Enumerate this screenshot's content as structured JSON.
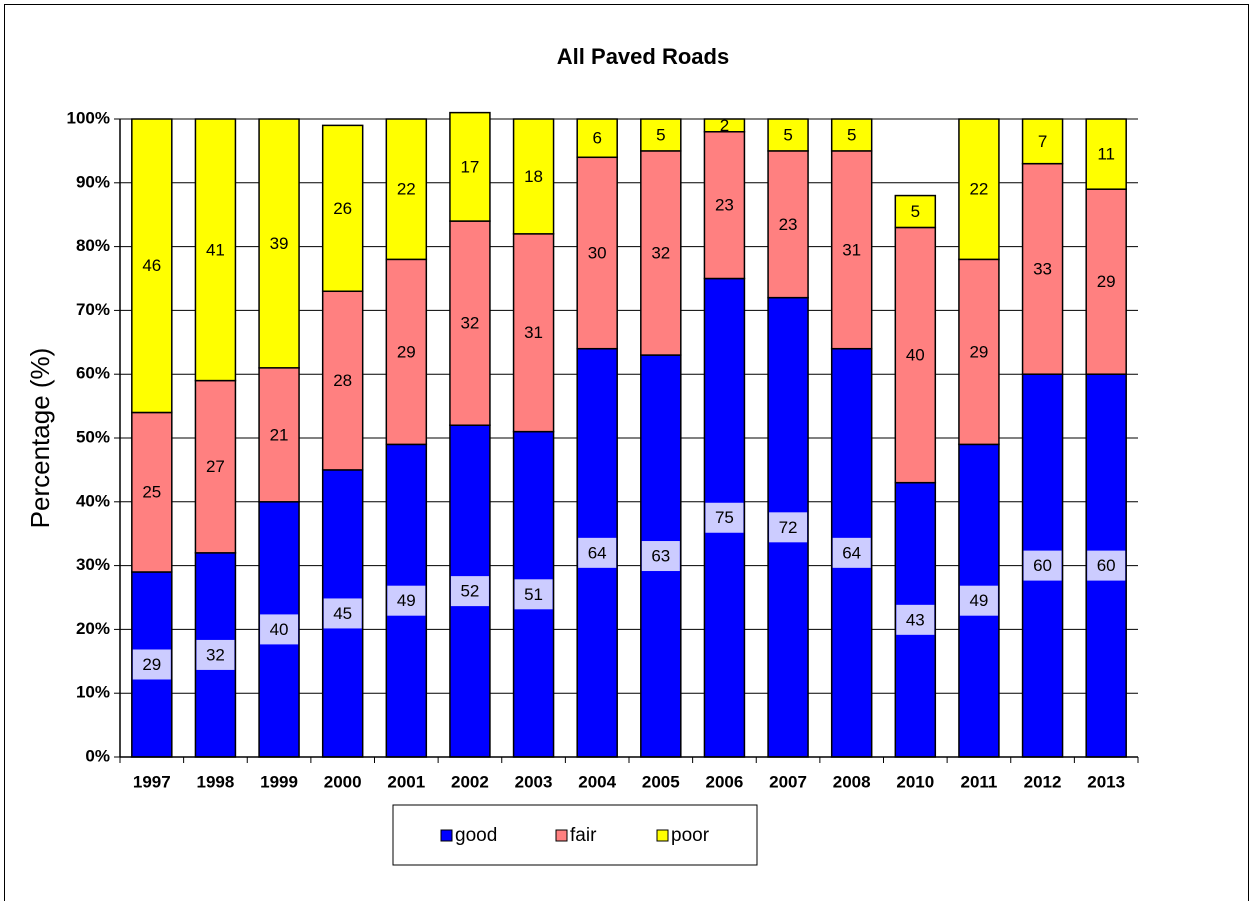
{
  "chart_data": {
    "type": "bar",
    "stacked": true,
    "title": "All Paved Roads",
    "y_label": "Percentage (%)",
    "categories": [
      "1997",
      "1998",
      "1999",
      "2000",
      "2001",
      "2002",
      "2003",
      "2004",
      "2005",
      "2006",
      "2007",
      "2008",
      "2010",
      "2011",
      "2012",
      "2013"
    ],
    "series": [
      {
        "name": "good",
        "color": "#0000ff",
        "values": [
          29,
          32,
          40,
          45,
          49,
          52,
          51,
          64,
          63,
          75,
          72,
          64,
          43,
          49,
          60,
          60
        ]
      },
      {
        "name": "fair",
        "color": "#ff8080",
        "values": [
          25,
          27,
          21,
          28,
          29,
          32,
          31,
          30,
          32,
          23,
          23,
          31,
          40,
          29,
          33,
          29
        ]
      },
      {
        "name": "poor",
        "color": "#ffff00",
        "values": [
          46,
          41,
          39,
          26,
          22,
          17,
          18,
          6,
          5,
          2,
          5,
          5,
          5,
          22,
          7,
          11
        ]
      }
    ],
    "ylim": [
      0,
      100
    ],
    "yticks": [
      {
        "value": 0,
        "label": "0%"
      },
      {
        "value": 10,
        "label": "10%"
      },
      {
        "value": 20,
        "label": "20%"
      },
      {
        "value": 30,
        "label": "30%"
      },
      {
        "value": 40,
        "label": "40%"
      },
      {
        "value": 50,
        "label": "50%"
      },
      {
        "value": 60,
        "label": "60%"
      },
      {
        "value": 70,
        "label": "70%"
      },
      {
        "value": 80,
        "label": "80%"
      },
      {
        "value": 90,
        "label": "90%"
      },
      {
        "value": 100,
        "label": "100%"
      }
    ],
    "grid": true,
    "legend": "bottom"
  }
}
